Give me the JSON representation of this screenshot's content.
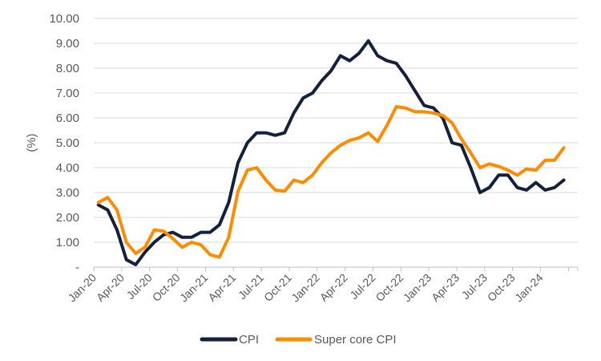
{
  "chart_data": {
    "type": "line",
    "title": "",
    "xlabel": "",
    "ylabel": "(%)",
    "ylim": [
      0,
      10
    ],
    "yticks": [
      0,
      1,
      2,
      3,
      4,
      5,
      6,
      7,
      8,
      9,
      10
    ],
    "ytick_labels": [
      "-",
      "1.00",
      "2.00",
      "3.00",
      "4.00",
      "5.00",
      "6.00",
      "7.00",
      "8.00",
      "9.00",
      "10.00"
    ],
    "grid": true,
    "legend_position": "bottom",
    "x": [
      "Jan-20",
      "Feb-20",
      "Mar-20",
      "Apr-20",
      "May-20",
      "Jun-20",
      "Jul-20",
      "Aug-20",
      "Sep-20",
      "Oct-20",
      "Nov-20",
      "Dec-20",
      "Jan-21",
      "Feb-21",
      "Mar-21",
      "Apr-21",
      "May-21",
      "Jun-21",
      "Jul-21",
      "Aug-21",
      "Sep-21",
      "Oct-21",
      "Nov-21",
      "Dec-21",
      "Jan-22",
      "Feb-22",
      "Mar-22",
      "Apr-22",
      "May-22",
      "Jun-22",
      "Jul-22",
      "Aug-22",
      "Sep-22",
      "Oct-22",
      "Nov-22",
      "Dec-22",
      "Jan-23",
      "Feb-23",
      "Mar-23",
      "Apr-23",
      "May-23",
      "Jun-23",
      "Jul-23",
      "Aug-23",
      "Sep-23",
      "Oct-23",
      "Nov-23",
      "Dec-23",
      "Jan-24",
      "Feb-24",
      "Mar-24"
    ],
    "xtick_labels": [
      "Jan-20",
      "Apr-20",
      "Jul-20",
      "Oct-20",
      "Jan-21",
      "Apr-21",
      "Jul-21",
      "Oct-21",
      "Jan-22",
      "Apr-22",
      "Jul-22",
      "Oct-22",
      "Jan-23",
      "Apr-23",
      "Jul-23",
      "Oct-23",
      "Jan-24"
    ],
    "series": [
      {
        "name": "CPI",
        "color": "#14213d",
        "values": [
          2.5,
          2.3,
          1.5,
          0.3,
          0.1,
          0.6,
          1.0,
          1.3,
          1.4,
          1.2,
          1.2,
          1.4,
          1.4,
          1.7,
          2.6,
          4.2,
          5.0,
          5.4,
          5.4,
          5.3,
          5.4,
          6.2,
          6.8,
          7.0,
          7.5,
          7.9,
          8.5,
          8.3,
          8.6,
          9.1,
          8.5,
          8.3,
          8.2,
          7.7,
          7.1,
          6.5,
          6.4,
          6.0,
          5.0,
          4.9,
          4.0,
          3.0,
          3.2,
          3.7,
          3.7,
          3.2,
          3.1,
          3.4,
          3.1,
          3.2,
          3.5
        ]
      },
      {
        "name": "Super core CPI",
        "color": "#ff8c00",
        "values": [
          2.6,
          2.8,
          2.3,
          1.0,
          0.55,
          0.8,
          1.5,
          1.45,
          1.15,
          0.8,
          1.0,
          0.9,
          0.5,
          0.4,
          1.2,
          3.05,
          3.9,
          4.0,
          3.5,
          3.1,
          3.05,
          3.5,
          3.4,
          3.7,
          4.2,
          4.6,
          4.9,
          5.1,
          5.2,
          5.4,
          5.05,
          5.7,
          6.45,
          6.4,
          6.25,
          6.25,
          6.2,
          6.1,
          5.8,
          5.15,
          4.6,
          4.0,
          4.15,
          4.05,
          3.9,
          3.7,
          3.95,
          3.9,
          4.3,
          4.3,
          4.8
        ]
      }
    ]
  }
}
